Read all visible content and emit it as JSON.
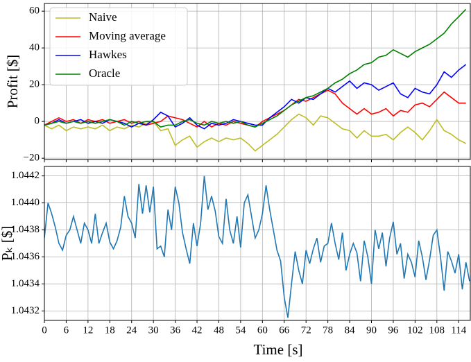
{
  "chart_data": [
    {
      "type": "line",
      "ylabel": "Profit [$]",
      "xlim": [
        0,
        117.2
      ],
      "ylim": [
        -20.7,
        64.2
      ],
      "yticks": [
        {
          "value": -20,
          "label": "−20"
        },
        0,
        20,
        40,
        60
      ],
      "grid": true,
      "legend": "upper left",
      "x": [
        0,
        2,
        4,
        6,
        8,
        10,
        12,
        14,
        16,
        18,
        20,
        22,
        24,
        26,
        28,
        30,
        32,
        34,
        36,
        38,
        40,
        42,
        44,
        46,
        48,
        50,
        52,
        54,
        56,
        58,
        60,
        62,
        64,
        66,
        68,
        70,
        72,
        74,
        76,
        78,
        80,
        82,
        84,
        86,
        88,
        90,
        92,
        94,
        96,
        98,
        100,
        102,
        104,
        106,
        108,
        110,
        112,
        114,
        116
      ],
      "series": [
        {
          "name": "Naive",
          "color": "#bcbd22",
          "values": [
            -2,
            -4,
            -2,
            -5,
            -3,
            -4,
            -3,
            -4,
            -2,
            -5,
            -3,
            -4,
            -2,
            -3,
            -1,
            0,
            -5,
            -4,
            -13,
            -10,
            -8,
            -14,
            -11,
            -9,
            -11,
            -9,
            -10,
            -9,
            -12,
            -16,
            -13,
            -10,
            -7,
            -3,
            1,
            4,
            2,
            -2,
            3,
            2,
            -1,
            -4,
            -5,
            -9,
            -5,
            -8,
            -8,
            -7,
            -10,
            -6,
            -3,
            -6,
            -10,
            -5,
            1,
            -5,
            -7,
            -10,
            -12
          ]
        },
        {
          "name": "Moving average",
          "color": "#ff0000",
          "values": [
            -2,
            0,
            2,
            0,
            1,
            -1,
            1,
            0,
            1,
            -1,
            0,
            1,
            -1,
            0,
            -2,
            -1,
            0,
            3,
            2,
            1,
            -1,
            -3,
            0,
            -3,
            -1,
            -2,
            0,
            -1,
            -2,
            -3,
            0,
            2,
            4,
            6,
            9,
            12,
            11,
            13,
            15,
            17,
            15,
            10,
            7,
            4,
            7,
            4,
            5,
            7,
            3,
            6,
            5,
            9,
            10,
            8,
            12,
            16,
            13,
            10,
            10
          ]
        },
        {
          "name": "Hawkes",
          "color": "#0000ff",
          "values": [
            -2,
            -1,
            1,
            -1,
            0,
            1,
            -1,
            0,
            -1,
            1,
            0,
            -1,
            -3,
            -1,
            -2,
            1,
            5,
            3,
            -3,
            -1,
            2,
            -2,
            -4,
            -1,
            -2,
            -1,
            1,
            0,
            -1,
            -2,
            -2,
            2,
            5,
            8,
            12,
            10,
            13,
            12,
            15,
            18,
            16,
            19,
            22,
            18,
            21,
            20,
            17,
            19,
            21,
            15,
            13,
            18,
            16,
            15,
            20,
            27,
            24,
            28,
            31
          ]
        },
        {
          "name": "Oracle",
          "color": "#008000",
          "values": [
            -2,
            -1,
            0,
            -1,
            0,
            -1,
            0,
            -1,
            0,
            1,
            0,
            -2,
            0,
            -1,
            0,
            0,
            -3,
            -2,
            -2,
            0,
            1,
            -1,
            -2,
            0,
            -1,
            0,
            -1,
            0,
            -2,
            -3,
            -1,
            1,
            3,
            6,
            9,
            11,
            13,
            14,
            16,
            18,
            21,
            23,
            26,
            28,
            31,
            32,
            35,
            36,
            39,
            37,
            35,
            38,
            40,
            42,
            45,
            48,
            53,
            57,
            61
          ]
        }
      ]
    },
    {
      "type": "line",
      "ylabel": "Pₖ [$]",
      "xlabel": "Time [s]",
      "xlim": [
        0,
        117.2
      ],
      "ylim": [
        1.04313,
        1.04427
      ],
      "xticks": [
        0,
        6,
        12,
        18,
        24,
        30,
        36,
        42,
        48,
        54,
        60,
        66,
        72,
        78,
        84,
        90,
        96,
        102,
        108,
        114
      ],
      "yticks": [
        1.0432,
        1.0434,
        1.0436,
        1.0438,
        {
          "value": 1.044,
          "label": "1.0440"
        },
        1.0442
      ],
      "grid": true,
      "x": [
        0,
        1,
        2,
        3,
        4,
        5,
        6,
        7,
        8,
        9,
        10,
        11,
        12,
        13,
        14,
        15,
        16,
        17,
        18,
        19,
        20,
        21,
        22,
        23,
        24,
        25,
        26,
        27,
        28,
        29,
        30,
        31,
        32,
        33,
        34,
        35,
        36,
        37,
        38,
        39,
        40,
        41,
        42,
        43,
        44,
        45,
        46,
        47,
        48,
        49,
        50,
        51,
        52,
        53,
        54,
        55,
        56,
        57,
        58,
        59,
        60,
        61,
        62,
        63,
        64,
        65,
        66,
        67,
        68,
        69,
        70,
        71,
        72,
        73,
        74,
        75,
        76,
        77,
        78,
        79,
        80,
        81,
        82,
        83,
        84,
        85,
        86,
        87,
        88,
        89,
        90,
        91,
        92,
        93,
        94,
        95,
        96,
        97,
        98,
        99,
        100,
        101,
        102,
        103,
        104,
        105,
        106,
        107,
        108,
        109,
        110,
        111,
        112,
        113,
        114,
        115,
        116,
        117
      ],
      "series": [
        {
          "color": "#1f77b4",
          "values": [
            1.04374,
            1.044,
            1.04392,
            1.04382,
            1.0437,
            1.04365,
            1.04376,
            1.0438,
            1.0439,
            1.0438,
            1.0437,
            1.04385,
            1.0438,
            1.0437,
            1.04392,
            1.0437,
            1.04378,
            1.04385,
            1.04371,
            1.04366,
            1.04372,
            1.04382,
            1.04405,
            1.0439,
            1.04385,
            1.04374,
            1.04414,
            1.04392,
            1.04413,
            1.04393,
            1.04412,
            1.04366,
            1.04368,
            1.0436,
            1.04395,
            1.0438,
            1.04412,
            1.044,
            1.04378,
            1.04366,
            1.04355,
            1.04385,
            1.04368,
            1.04385,
            1.0442,
            1.04395,
            1.04405,
            1.04394,
            1.04375,
            1.0437,
            1.04403,
            1.0438,
            1.0437,
            1.0439,
            1.04367,
            1.044,
            1.04406,
            1.0439,
            1.04374,
            1.0438,
            1.04392,
            1.04413,
            1.04395,
            1.0438,
            1.04365,
            1.04357,
            1.0433,
            1.04315,
            1.0434,
            1.04364,
            1.0435,
            1.0434,
            1.04365,
            1.04355,
            1.04366,
            1.04374,
            1.04356,
            1.04368,
            1.0437,
            1.04385,
            1.0437,
            1.04358,
            1.04378,
            1.0435,
            1.04362,
            1.0437,
            1.04363,
            1.04342,
            1.04372,
            1.0436,
            1.0434,
            1.0438,
            1.04366,
            1.04378,
            1.04353,
            1.04374,
            1.04386,
            1.04362,
            1.0437,
            1.04344,
            1.04362,
            1.04356,
            1.04345,
            1.04372,
            1.0436,
            1.04343,
            1.04358,
            1.04376,
            1.0438,
            1.0436,
            1.04335,
            1.04364,
            1.04357,
            1.04348,
            1.04362,
            1.04336,
            1.04356,
            1.04342
          ]
        }
      ]
    }
  ]
}
